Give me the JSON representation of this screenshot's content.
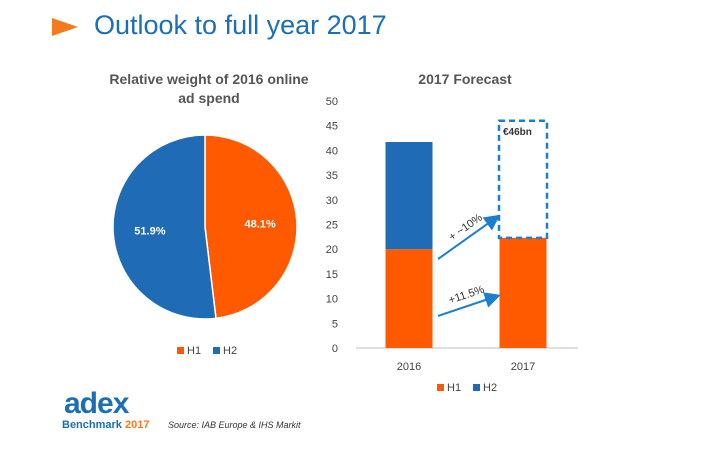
{
  "header": {
    "title": "Outlook to full year 2017"
  },
  "colors": {
    "h1": "#ff5a00",
    "h2": "#1f6bb5",
    "accent": "#f47a20",
    "brand": "#1a6fb6",
    "annotation": "#1a7fcf"
  },
  "chart_data": [
    {
      "type": "pie",
      "title": "Relative weight of 2016 online ad spend",
      "title_lines": [
        "Relative weight of 2016 online",
        "ad spend"
      ],
      "slices": [
        {
          "name": "H1",
          "value": 48.1,
          "label": "48.1%"
        },
        {
          "name": "H2",
          "value": 51.9,
          "label": "51.9%"
        }
      ],
      "legend": [
        "H1",
        "H2"
      ],
      "legend_position": "bottom"
    },
    {
      "type": "bar",
      "stacked": true,
      "title": "2017 Forecast",
      "categories": [
        "2016",
        "2017"
      ],
      "series": [
        {
          "name": "H1",
          "values": [
            20,
            22.3
          ]
        },
        {
          "name": "H2",
          "values": [
            21.7,
            null
          ]
        }
      ],
      "forecast_box": {
        "category": "2017",
        "from": 22.3,
        "to": 46,
        "label": "€46bn"
      },
      "annotations": [
        {
          "text": "+ ~10%",
          "from_value": 18,
          "to_value": 26.5
        },
        {
          "text": "+11.5%",
          "from_value": 6.5,
          "to_value": 10.5
        }
      ],
      "ylim": [
        0,
        50
      ],
      "yticks": [
        0,
        5,
        10,
        15,
        20,
        25,
        30,
        35,
        40,
        45,
        50
      ],
      "xlabel": "",
      "ylabel": "",
      "legend": [
        "H1",
        "H2"
      ],
      "legend_position": "bottom"
    }
  ],
  "footer": {
    "source": "Source: IAB Europe & IHS Markit",
    "logo_main": "adex",
    "logo_sub": "Benchmark",
    "logo_year": "2017"
  }
}
